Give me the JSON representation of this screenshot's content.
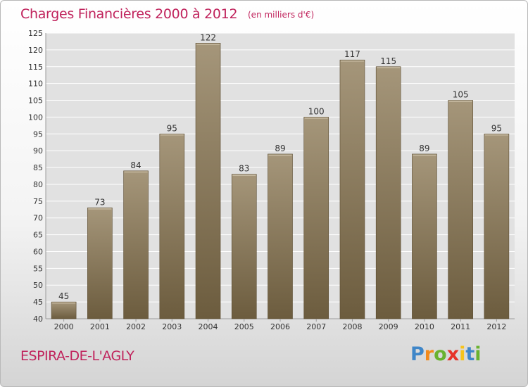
{
  "header": {
    "title": "Charges Financières 2000 à 2012",
    "subtitle": "(en milliers d'€)"
  },
  "footer": {
    "commune": "ESPIRA-DE-L'AGLY",
    "logo_letters": [
      {
        "char": "P",
        "color": "#3f86c8"
      },
      {
        "char": "r",
        "color": "#f28a1c"
      },
      {
        "char": "o",
        "color": "#69b22f"
      },
      {
        "char": "x",
        "color": "#e6332a"
      },
      {
        "char": "i",
        "color": "#f7c31b"
      },
      {
        "char": "t",
        "color": "#3f86c8"
      },
      {
        "char": "i",
        "color": "#69b22f"
      }
    ]
  },
  "colors": {
    "bar_top": "#a5967a",
    "bar_bottom": "#6c5c3e",
    "bar_edge": "#5a4b30",
    "text_accent": "#c0235c",
    "plot_bg": "#e1e1e1"
  },
  "chart_data": {
    "type": "bar",
    "title": "Charges Financières 2000 à 2012",
    "subtitle": "(en milliers d'€)",
    "categories": [
      "2000",
      "2001",
      "2002",
      "2003",
      "2004",
      "2005",
      "2006",
      "2007",
      "2008",
      "2009",
      "2010",
      "2011",
      "2012"
    ],
    "values": [
      45,
      73,
      84,
      95,
      122,
      83,
      89,
      100,
      117,
      115,
      89,
      105,
      95
    ],
    "ylim": [
      40,
      125
    ],
    "yticks": [
      40,
      45,
      50,
      55,
      60,
      65,
      70,
      75,
      80,
      85,
      90,
      95,
      100,
      105,
      110,
      115,
      120,
      125
    ],
    "grid": true,
    "data_labels": true,
    "legend": "none"
  }
}
